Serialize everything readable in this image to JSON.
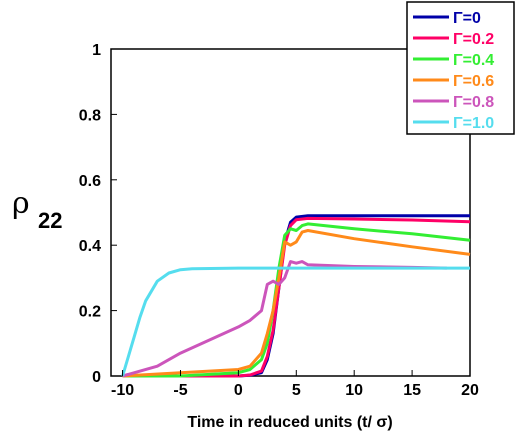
{
  "chart_data": {
    "type": "line",
    "ylabel_symbol": "ρ",
    "ylabel_subscript": "22",
    "xlabel": "Time in reduced units (t/ σ)",
    "xlim": [
      -11,
      20
    ],
    "ylim": [
      0,
      1
    ],
    "xticks": [
      -10,
      -5,
      0,
      5,
      10,
      15,
      20
    ],
    "xtick_labels": [
      "-10",
      "-5",
      "0",
      "5",
      "10",
      "15",
      "20"
    ],
    "yticks": [
      0,
      0.2,
      0.4,
      0.6,
      0.8,
      1
    ],
    "ytick_labels": [
      "0",
      "0.2",
      "0.4",
      "0.6",
      "0.8",
      "1"
    ],
    "grid": false,
    "legend_position": "top-right",
    "series": [
      {
        "name": "Γ=0",
        "color": "#0000a8",
        "points": [
          [
            -10,
            0
          ],
          [
            0,
            0
          ],
          [
            1,
            0.002
          ],
          [
            2,
            0.01
          ],
          [
            2.5,
            0.05
          ],
          [
            3,
            0.13
          ],
          [
            3.5,
            0.27
          ],
          [
            4,
            0.41
          ],
          [
            4.5,
            0.47
          ],
          [
            5,
            0.486
          ],
          [
            6,
            0.49
          ],
          [
            10,
            0.49
          ],
          [
            15,
            0.49
          ],
          [
            20,
            0.49
          ]
        ]
      },
      {
        "name": "Γ=0.2",
        "color": "#ff0066",
        "points": [
          [
            -10,
            0
          ],
          [
            0,
            0
          ],
          [
            1,
            0.003
          ],
          [
            2,
            0.015
          ],
          [
            2.5,
            0.06
          ],
          [
            3,
            0.14
          ],
          [
            3.5,
            0.27
          ],
          [
            4,
            0.4
          ],
          [
            4.5,
            0.46
          ],
          [
            5,
            0.478
          ],
          [
            6,
            0.482
          ],
          [
            10,
            0.48
          ],
          [
            15,
            0.477
          ],
          [
            20,
            0.472
          ]
        ]
      },
      {
        "name": "Γ=0.4",
        "color": "#33ee33",
        "points": [
          [
            -10,
            0
          ],
          [
            -5,
            0
          ],
          [
            0,
            0.01
          ],
          [
            1,
            0.02
          ],
          [
            2,
            0.05
          ],
          [
            2.5,
            0.1
          ],
          [
            3,
            0.2
          ],
          [
            3.5,
            0.33
          ],
          [
            4,
            0.43
          ],
          [
            4.5,
            0.45
          ],
          [
            5,
            0.445
          ],
          [
            5.5,
            0.46
          ],
          [
            6,
            0.465
          ],
          [
            10,
            0.45
          ],
          [
            15,
            0.435
          ],
          [
            20,
            0.415
          ]
        ]
      },
      {
        "name": "Γ=0.6",
        "color": "#ff8a1a",
        "points": [
          [
            -10,
            0
          ],
          [
            -5,
            0.01
          ],
          [
            0,
            0.02
          ],
          [
            1,
            0.03
          ],
          [
            2,
            0.07
          ],
          [
            2.5,
            0.13
          ],
          [
            3,
            0.2
          ],
          [
            3.5,
            0.3
          ],
          [
            4,
            0.41
          ],
          [
            4.5,
            0.4
          ],
          [
            5,
            0.41
          ],
          [
            5.5,
            0.44
          ],
          [
            6,
            0.445
          ],
          [
            10,
            0.42
          ],
          [
            15,
            0.395
          ],
          [
            20,
            0.372
          ]
        ]
      },
      {
        "name": "Γ=0.8",
        "color": "#cc55bb",
        "points": [
          [
            -10,
            0
          ],
          [
            -7,
            0.03
          ],
          [
            -5,
            0.07
          ],
          [
            0,
            0.15
          ],
          [
            1,
            0.17
          ],
          [
            2,
            0.2
          ],
          [
            2.5,
            0.28
          ],
          [
            3,
            0.29
          ],
          [
            3.5,
            0.28
          ],
          [
            4,
            0.3
          ],
          [
            4.5,
            0.35
          ],
          [
            5,
            0.345
          ],
          [
            5.5,
            0.35
          ],
          [
            6,
            0.34
          ],
          [
            10,
            0.335
          ],
          [
            15,
            0.332
          ],
          [
            18,
            0.33
          ]
        ]
      },
      {
        "name": "Γ=1.0",
        "color": "#55ddee",
        "points": [
          [
            -10,
            0
          ],
          [
            -9.5,
            0.06
          ],
          [
            -9,
            0.12
          ],
          [
            -8.5,
            0.18
          ],
          [
            -8,
            0.23
          ],
          [
            -7,
            0.29
          ],
          [
            -6,
            0.315
          ],
          [
            -5,
            0.325
          ],
          [
            -4,
            0.328
          ],
          [
            0,
            0.33
          ],
          [
            10,
            0.33
          ],
          [
            20,
            0.33
          ]
        ]
      }
    ]
  }
}
